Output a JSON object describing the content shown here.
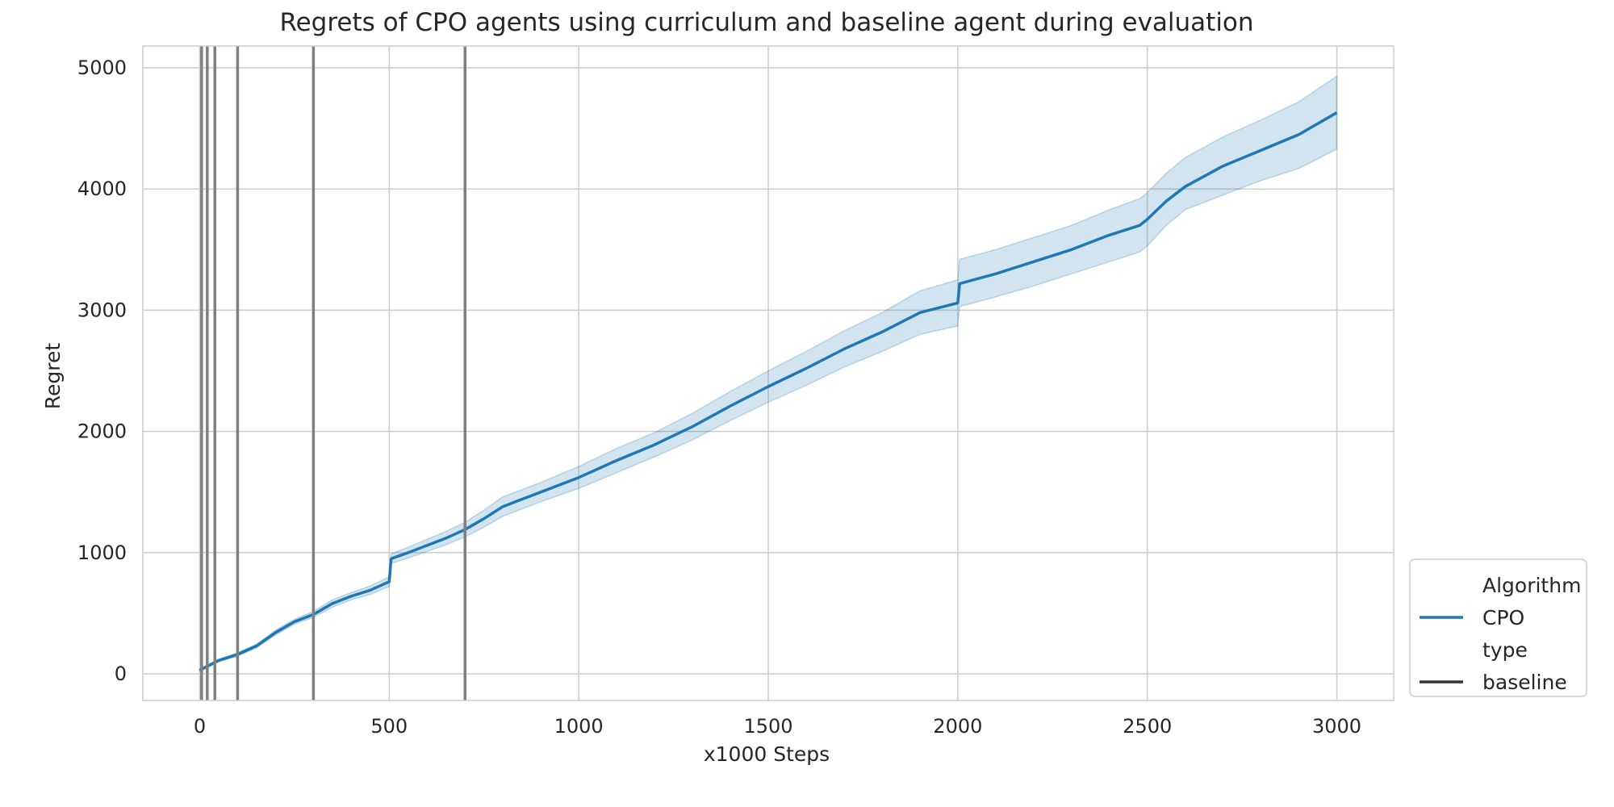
{
  "chart_data": {
    "type": "line",
    "title": "Regrets of CPO agents using curriculum and baseline agent during evaluation",
    "xlabel": "x1000 Steps",
    "ylabel": "Regret",
    "xlim": [
      -150,
      3150
    ],
    "ylim": [
      -220,
      5180
    ],
    "xticks": [
      0,
      500,
      1000,
      1500,
      2000,
      2500,
      3000
    ],
    "yticks": [
      0,
      1000,
      2000,
      3000,
      4000,
      5000
    ],
    "grid": true,
    "legend_placement": "lower-right-outside",
    "legend": [
      {
        "label": "Algorithm",
        "kind": "header"
      },
      {
        "label": "CPO",
        "kind": "line",
        "color": "#1f77b4"
      },
      {
        "label": "type",
        "kind": "header"
      },
      {
        "label": "baseline",
        "kind": "line",
        "color": "#333333"
      }
    ],
    "vertical_lines": {
      "color": "#7f7f7f",
      "x": [
        5,
        20,
        40,
        100,
        300,
        700
      ]
    },
    "series": [
      {
        "name": "CPO",
        "color": "#1f77b4",
        "band_color": "#1f77b4",
        "x": [
          0,
          50,
          100,
          150,
          200,
          250,
          300,
          350,
          400,
          450,
          500,
          505,
          550,
          600,
          650,
          700,
          750,
          800,
          900,
          1000,
          1100,
          1200,
          1300,
          1400,
          1500,
          1600,
          1700,
          1800,
          1900,
          2000,
          2005,
          2100,
          2200,
          2300,
          2400,
          2480,
          2500,
          2550,
          2600,
          2700,
          2800,
          2900,
          3000
        ],
        "y": [
          30,
          110,
          160,
          230,
          340,
          430,
          490,
          580,
          640,
          690,
          760,
          950,
          1000,
          1060,
          1120,
          1190,
          1280,
          1380,
          1500,
          1620,
          1760,
          1890,
          2040,
          2210,
          2370,
          2520,
          2680,
          2820,
          2980,
          3060,
          3220,
          3300,
          3400,
          3500,
          3620,
          3700,
          3750,
          3900,
          4020,
          4190,
          4320,
          4450,
          4630
        ],
        "lower": [
          20,
          100,
          145,
          215,
          320,
          410,
          465,
          550,
          610,
          655,
          720,
          910,
          955,
          1010,
          1065,
          1130,
          1210,
          1300,
          1420,
          1530,
          1660,
          1790,
          1930,
          2090,
          2240,
          2380,
          2530,
          2660,
          2800,
          2870,
          3030,
          3110,
          3200,
          3300,
          3400,
          3480,
          3530,
          3700,
          3830,
          3950,
          4070,
          4170,
          4330
        ],
        "upper": [
          40,
          120,
          175,
          245,
          360,
          450,
          515,
          610,
          670,
          725,
          800,
          990,
          1045,
          1110,
          1175,
          1250,
          1350,
          1460,
          1580,
          1710,
          1860,
          1990,
          2150,
          2330,
          2500,
          2660,
          2830,
          2980,
          3160,
          3250,
          3420,
          3500,
          3600,
          3700,
          3830,
          3920,
          3970,
          4130,
          4260,
          4430,
          4570,
          4720,
          4930
        ]
      }
    ]
  }
}
